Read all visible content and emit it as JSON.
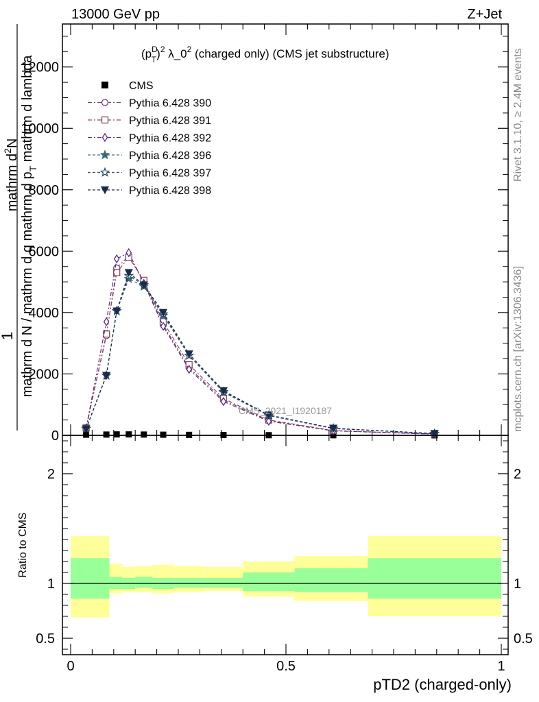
{
  "header": {
    "energy_label": "13000 GeV pp",
    "process_label": "Z+Jet"
  },
  "side_labels": {
    "rivet": "Rivet 3.1.10, ≥ 2.4M events",
    "mcplots": "mcplots.cern.ch [arXiv:1306.3436]"
  },
  "watermark": "CMS_2021_I1920187",
  "chart_data": [
    {
      "type": "line",
      "title_parts": {
        "a": "(p",
        "sup_d": "D",
        "sub_t": "T",
        "b": ")",
        "sup_2": "2",
        "c": " λ_0",
        "sup_2b": "2",
        "d": " (charged only) (CMS jet substructure)"
      },
      "ylabel_parts": {
        "one": "1",
        "denom_a": "mathrm d N / mathrm d ",
        "denom_b": "mathrm d p",
        "denom_b_sub": "T",
        "denom_c": " mathrm d lambda",
        "num_a": "mathrm d",
        "num_a_sup": "2",
        "num_b": "N",
        "denom_full_1": "mathrm d N / mathrm d q mathrm d p",
        "denom_full_sub": "T",
        "denom_full_2": " mathrm d lambda"
      },
      "xlabel": "pTD2 (charged-only)",
      "xlim": [
        0,
        1
      ],
      "ylim": [
        0,
        13000
      ],
      "x_ticks": [
        "0",
        "0.5",
        "1"
      ],
      "y_ticks": [
        {
          "value": 0,
          "label": "0"
        },
        {
          "value": 2000,
          "label": "2000"
        },
        {
          "value": 4000,
          "label": "4000"
        },
        {
          "value": 6000,
          "label": "6000"
        },
        {
          "value": 8000,
          "label": "8000"
        },
        {
          "value": 10000,
          "label": "10000"
        },
        {
          "value": 12000,
          "label": "12000"
        }
      ],
      "x": [
        0.036,
        0.083,
        0.107,
        0.135,
        0.17,
        0.215,
        0.275,
        0.355,
        0.46,
        0.61,
        0.845
      ],
      "data_series": {
        "name": "CMS",
        "values": [
          20,
          25,
          30,
          30,
          25,
          20,
          15,
          10,
          5,
          3,
          1
        ]
      },
      "series": [
        {
          "name": "Pythia 6.428 390",
          "color": "#7b3f7b",
          "marker": "circle-open",
          "dash": "6,3,2,3",
          "values": [
            250,
            3250,
            5450,
            5850,
            5000,
            3600,
            2200,
            1150,
            480,
            150,
            40
          ]
        },
        {
          "name": "Pythia 6.428 391",
          "color": "#8a4a5a",
          "marker": "square-open",
          "dash": "6,3,2,3",
          "values": [
            240,
            3300,
            5300,
            5800,
            5050,
            3700,
            2300,
            1200,
            500,
            155,
            40
          ]
        },
        {
          "name": "Pythia 6.428 392",
          "color": "#5a2a8a",
          "marker": "diamond-open",
          "dash": "6,3,2,3",
          "values": [
            230,
            3700,
            5750,
            5950,
            4950,
            3550,
            2150,
            1100,
            460,
            145,
            38
          ]
        },
        {
          "name": "Pythia 6.428 396",
          "color": "#3b6b7b",
          "marker": "star-filled",
          "dash": "4,3",
          "values": [
            220,
            1950,
            4050,
            5100,
            4850,
            3900,
            2600,
            1400,
            640,
            220,
            55
          ]
        },
        {
          "name": "Pythia 6.428 397",
          "color": "#2b4b6b",
          "marker": "star-open",
          "dash": "4,3",
          "values": [
            215,
            1950,
            4050,
            5200,
            4900,
            3950,
            2600,
            1420,
            650,
            225,
            55
          ]
        },
        {
          "name": "Pythia 6.428 398",
          "color": "#1b2b4b",
          "marker": "triangle-down-filled",
          "dash": "4,3",
          "values": [
            210,
            1950,
            4050,
            5300,
            4900,
            4000,
            2650,
            1450,
            660,
            230,
            58
          ]
        }
      ],
      "grid": false,
      "legend_position": "top-left"
    },
    {
      "type": "area",
      "ylabel": "Ratio to CMS",
      "xlim": [
        0,
        1
      ],
      "ylim": [
        0.35,
        2.35
      ],
      "x_ticks": [
        "0",
        "0.5",
        "1"
      ],
      "y_ticks": [
        {
          "value": 0.5,
          "label": "0.5"
        },
        {
          "value": 1,
          "label": "1"
        },
        {
          "value": 2,
          "label": "2"
        }
      ],
      "bins": [
        {
          "lo": 0.0,
          "hi": 0.09,
          "inner": [
            0.86,
            1.23
          ],
          "outer": [
            0.69,
            1.43
          ]
        },
        {
          "lo": 0.09,
          "hi": 0.12,
          "inner": [
            0.95,
            1.06
          ],
          "outer": [
            0.91,
            1.18
          ]
        },
        {
          "lo": 0.12,
          "hi": 0.15,
          "inner": [
            0.95,
            1.05
          ],
          "outer": [
            0.92,
            1.15
          ]
        },
        {
          "lo": 0.15,
          "hi": 0.19,
          "inner": [
            0.96,
            1.06
          ],
          "outer": [
            0.92,
            1.16
          ]
        },
        {
          "lo": 0.19,
          "hi": 0.24,
          "inner": [
            0.95,
            1.05
          ],
          "outer": [
            0.91,
            1.17
          ]
        },
        {
          "lo": 0.24,
          "hi": 0.31,
          "inner": [
            0.96,
            1.05
          ],
          "outer": [
            0.92,
            1.16
          ]
        },
        {
          "lo": 0.31,
          "hi": 0.4,
          "inner": [
            0.96,
            1.05
          ],
          "outer": [
            0.93,
            1.15
          ]
        },
        {
          "lo": 0.4,
          "hi": 0.52,
          "inner": [
            0.93,
            1.1
          ],
          "outer": [
            0.88,
            1.2
          ]
        },
        {
          "lo": 0.52,
          "hi": 0.69,
          "inner": [
            0.92,
            1.14
          ],
          "outer": [
            0.84,
            1.25
          ]
        },
        {
          "lo": 0.69,
          "hi": 1.0,
          "inner": [
            0.86,
            1.23
          ],
          "outer": [
            0.7,
            1.43
          ]
        }
      ],
      "reference_line": 1
    }
  ]
}
